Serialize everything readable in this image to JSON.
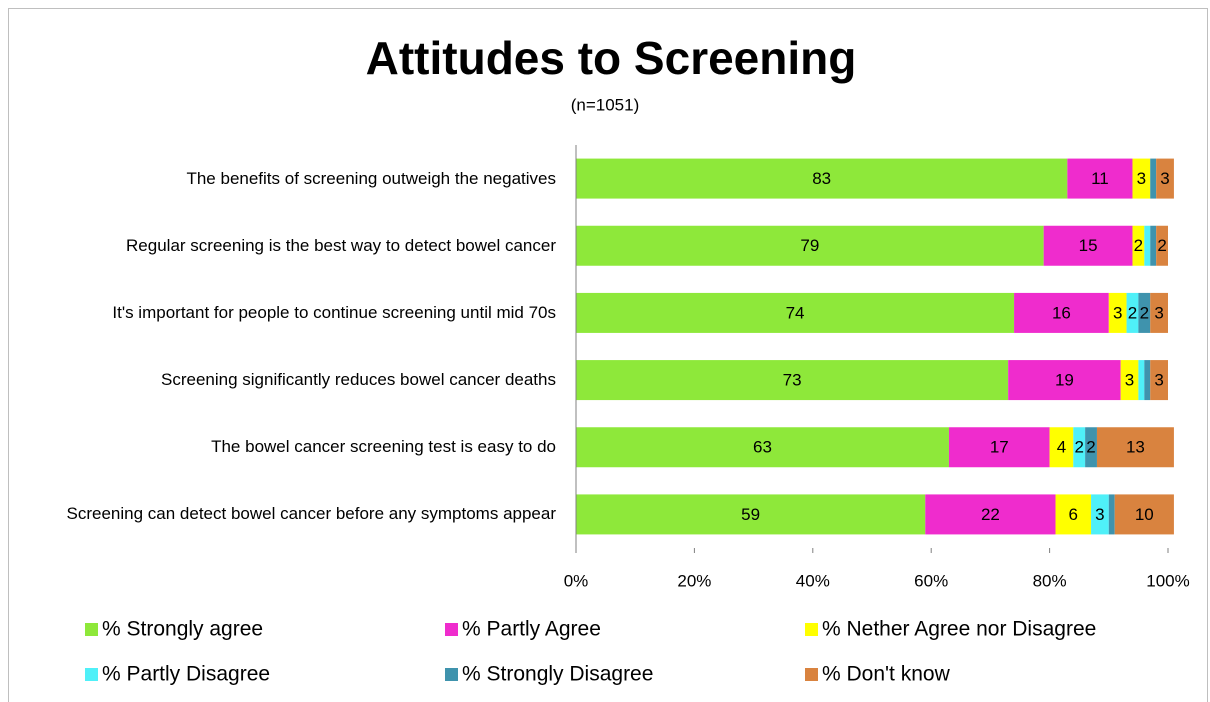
{
  "chart_data": {
    "type": "stacked_barh",
    "title": "Attitudes to Screening",
    "subtitle": "(n=1051)",
    "categories": [
      "The benefits of screening outweigh the negatives",
      "Regular screening is the best way to detect bowel cancer",
      "It's important for people to continue screening until mid 70s",
      "Screening significantly reduces bowel cancer deaths",
      "The bowel cancer screening test is easy to do",
      "Screening can detect bowel cancer before any symptoms appear"
    ],
    "series": [
      {
        "name": "% Strongly agree",
        "color": "#8ee83a",
        "values": [
          83,
          79,
          74,
          73,
          63,
          59
        ]
      },
      {
        "name": "% Partly Agree",
        "color": "#ef2ccd",
        "values": [
          11,
          15,
          16,
          19,
          17,
          22
        ]
      },
      {
        "name": "% Nether Agree nor Disagree",
        "color": "#ffff00",
        "values": [
          3,
          2,
          3,
          3,
          4,
          6
        ]
      },
      {
        "name": "% Partly Disagree",
        "color": "#4ff0f8",
        "values": [
          0,
          1,
          2,
          1,
          2,
          3
        ]
      },
      {
        "name": "% Strongly Disagree",
        "color": "#3f93ad",
        "values": [
          1,
          1,
          2,
          1,
          2,
          1
        ]
      },
      {
        "name": "% Don't know",
        "color": "#d9833f",
        "values": [
          3,
          2,
          3,
          3,
          13,
          10
        ]
      }
    ],
    "xlim": [
      0,
      100
    ],
    "xticks": [
      {
        "value": 0,
        "label": "0%"
      },
      {
        "value": 20,
        "label": "20%"
      },
      {
        "value": 40,
        "label": "40%"
      },
      {
        "value": 60,
        "label": "60%"
      },
      {
        "value": 80,
        "label": "80%"
      },
      {
        "value": 100,
        "label": "100%"
      }
    ],
    "legend": "bottom"
  }
}
